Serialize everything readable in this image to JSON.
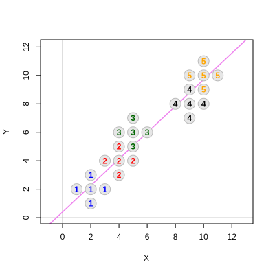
{
  "chart_data": {
    "type": "scatter",
    "xlabel": "X",
    "ylabel": "Y",
    "xlim": [
      -1.56,
      13.5
    ],
    "ylim": [
      -0.43,
      12.5
    ],
    "xticks": [
      0,
      2,
      4,
      6,
      8,
      10,
      12
    ],
    "yticks": [
      0,
      2,
      4,
      6,
      8,
      10,
      12
    ],
    "reference_lines": {
      "x": 0,
      "y": 0
    },
    "fit_line": {
      "intercept": 0.4,
      "slope": 0.93,
      "color": "#ee82ee"
    },
    "series": [
      {
        "label": "1",
        "color": "#0000ff",
        "x": [
          1,
          2,
          2,
          2,
          3
        ],
        "y": [
          2,
          2,
          3,
          1,
          2
        ]
      },
      {
        "label": "2",
        "color": "#ff0000",
        "x": [
          3,
          4,
          4,
          4,
          5
        ],
        "y": [
          4,
          4,
          5,
          3,
          4
        ]
      },
      {
        "label": "3",
        "color": "#006400",
        "x": [
          4,
          5,
          5,
          5,
          6
        ],
        "y": [
          6,
          6,
          7,
          5,
          6
        ]
      },
      {
        "label": "4",
        "color": "#000000",
        "x": [
          8,
          9,
          9,
          9,
          10
        ],
        "y": [
          8,
          8,
          9,
          7,
          8
        ]
      },
      {
        "label": "5",
        "color": "#ffa500",
        "x": [
          9,
          10,
          10,
          10,
          11
        ],
        "y": [
          10,
          10,
          11,
          9,
          10
        ]
      }
    ]
  }
}
